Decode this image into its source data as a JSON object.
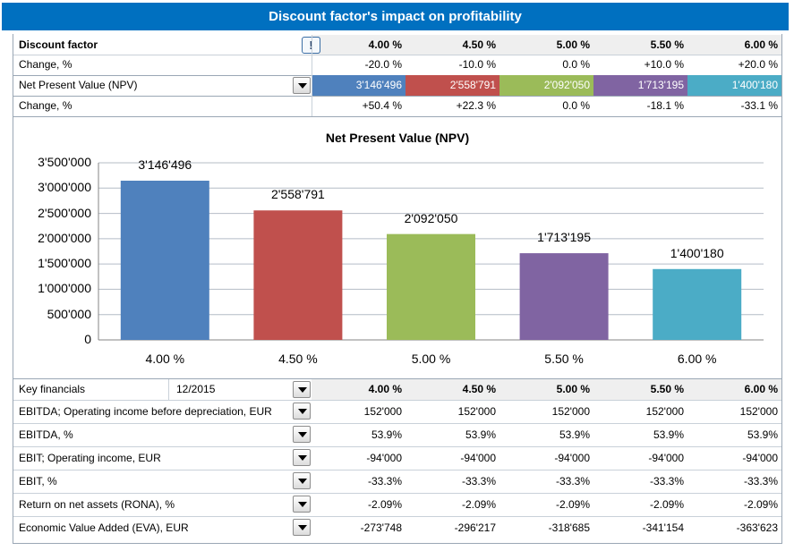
{
  "title": "Discount factor's impact on profitability",
  "discount_header": {
    "label": "Discount factor",
    "rates": [
      "4.00 %",
      "4.50 %",
      "5.00 %",
      "5.50 %",
      "6.00 %"
    ]
  },
  "discount_change": {
    "label": "Change, %",
    "values": [
      "-20.0 %",
      "-10.0 %",
      "0.0 %",
      "+10.0 %",
      "+20.0 %"
    ]
  },
  "npv_row": {
    "label": "Net Present Value (NPV)",
    "values": [
      "3'146'496",
      "2'558'791",
      "2'092'050",
      "1'713'195",
      "1'400'180"
    ]
  },
  "npv_change": {
    "label": "Change, %",
    "values": [
      "+50.4 %",
      "+22.3 %",
      "0.0 %",
      "-18.1 %",
      "-33.1 %"
    ]
  },
  "colors": {
    "title_bar": "#0070c0",
    "bar_1": "#4f81bd",
    "bar_2": "#c0504d",
    "bar_3": "#9bbb59",
    "bar_4": "#8064a2",
    "bar_5": "#4bacc6"
  },
  "chart_data": {
    "type": "bar",
    "title": "Net Present Value (NPV)",
    "categories": [
      "4.00 %",
      "4.50 %",
      "5.00 %",
      "5.50 %",
      "6.00 %"
    ],
    "values": [
      3146496,
      2558791,
      2092050,
      1713195,
      1400180
    ],
    "data_labels": [
      "3'146'496",
      "2'558'791",
      "2'092'050",
      "1'713'195",
      "1'400'180"
    ],
    "ylim": [
      0,
      3500000
    ],
    "yticks": [
      "0",
      "500'000",
      "1'000'000",
      "1'500'000",
      "2'000'000",
      "2'500'000",
      "3'000'000",
      "3'500'000"
    ],
    "grid": true,
    "colors": [
      "#4f81bd",
      "#c0504d",
      "#9bbb59",
      "#8064a2",
      "#4bacc6"
    ]
  },
  "key_financials": {
    "label": "Key financials",
    "period": "12/2015",
    "rates": [
      "4.00 %",
      "4.50 %",
      "5.00 %",
      "5.50 %",
      "6.00 %"
    ],
    "rows": [
      {
        "label": "EBITDA; Operating income before depreciation, EUR",
        "values": [
          "152'000",
          "152'000",
          "152'000",
          "152'000",
          "152'000"
        ]
      },
      {
        "label": "EBITDA, %",
        "values": [
          "53.9%",
          "53.9%",
          "53.9%",
          "53.9%",
          "53.9%"
        ]
      },
      {
        "label": "EBIT; Operating income, EUR",
        "values": [
          "-94'000",
          "-94'000",
          "-94'000",
          "-94'000",
          "-94'000"
        ]
      },
      {
        "label": "EBIT, %",
        "values": [
          "-33.3%",
          "-33.3%",
          "-33.3%",
          "-33.3%",
          "-33.3%"
        ]
      },
      {
        "label": "Return on net assets (RONA), %",
        "values": [
          "-2.09%",
          "-2.09%",
          "-2.09%",
          "-2.09%",
          "-2.09%"
        ]
      },
      {
        "label": "Economic Value Added (EVA), EUR",
        "values": [
          "-273'748",
          "-296'217",
          "-318'685",
          "-341'154",
          "-363'623"
        ]
      }
    ]
  },
  "icons": {
    "info": "exclamation-icon",
    "dropdown": "chevron-down-icon"
  }
}
